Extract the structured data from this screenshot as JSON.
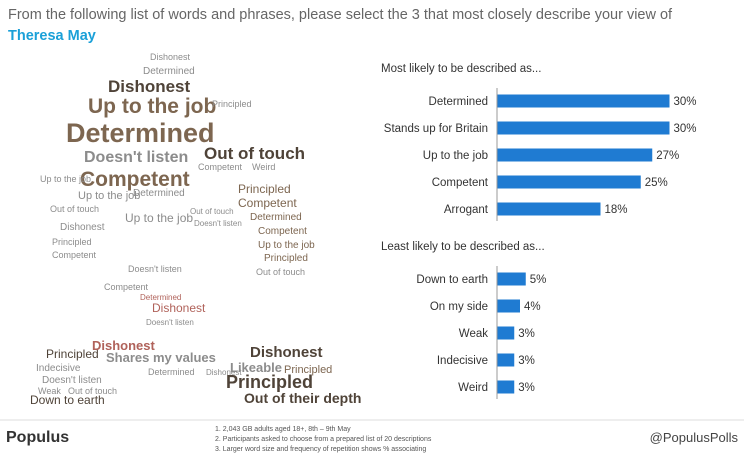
{
  "title": "From the following list of words and phrases, please select the 3 that most closely describe your view of",
  "subtitle": "Theresa May",
  "wordcloud": [
    "Dishonest",
    "Determined",
    "Dishonest",
    "Up to the job",
    "Principled",
    "Determined",
    "Out of touch",
    "Doesn't listen",
    "Competent",
    "Competent",
    "Up to the job",
    "Principled",
    "Out of touch",
    "Determined",
    "Competent",
    "Dishonest",
    "Up to the job",
    "Determined",
    "Competent",
    "Principled",
    "Competent",
    "Out of touch",
    "Doesn't listen",
    "Up to the job",
    "Principled",
    "Out of touch",
    "Doesn't listen",
    "Determined",
    "Doesn't listen",
    "Dishonest",
    "Competent",
    "Principled",
    "Dishonest",
    "Shares my values",
    "Dishonest",
    "Likeable",
    "Principled",
    "Principled",
    "Out of their depth",
    "Indecisive",
    "Doesn't listen",
    "Weak",
    "Out of touch",
    "Down to earth",
    "Determined",
    "Dishonest",
    "Weird",
    "Up to the job"
  ],
  "chart_data": [
    {
      "type": "bar",
      "title": "Most likely to be described as...",
      "categories": [
        "Determined",
        "Stands up for Britain",
        "Up to the job",
        "Competent",
        "Arrogant"
      ],
      "values": [
        30,
        30,
        27,
        25,
        18
      ],
      "value_labels": [
        "30%",
        "30%",
        "27%",
        "25%",
        "18%"
      ],
      "color": "#1f7bd2"
    },
    {
      "type": "bar",
      "title": "Least likely to be described as...",
      "categories": [
        "Down to earth",
        "On my side",
        "Weak",
        "Indecisive",
        "Weird"
      ],
      "values": [
        5,
        4,
        3,
        3,
        3
      ],
      "value_labels": [
        "5%",
        "4%",
        "3%",
        "3%",
        "3%"
      ],
      "color": "#1f7bd2"
    }
  ],
  "footer": {
    "brand": "Populus",
    "notes": [
      "1.   2,043 GB adults aged 18+, 8th – 9th May",
      "2.   Participants asked to choose from a prepared list of 20 descriptions",
      "3.   Larger word size and frequency of repetition shows % associating"
    ],
    "handle": "@PopulusPolls"
  }
}
